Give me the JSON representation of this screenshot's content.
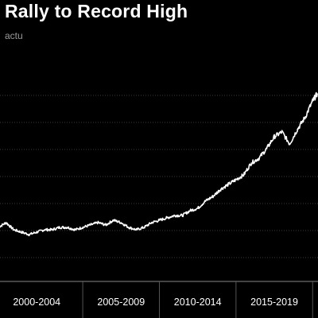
{
  "title": "Rally to Record High",
  "subtitle": "actu",
  "colors": {
    "background": "#000000",
    "line": "#ffffff",
    "grid": "#3a3a3a",
    "text": "#ffffff",
    "subtitle": "#9a9a9a"
  },
  "chart_data": {
    "type": "line",
    "title": "Rally to Record High",
    "xlabel": "",
    "ylabel": "",
    "x_tick_labels": [
      "2000-2004",
      "2005-2009",
      "2010-2014",
      "2015-2019"
    ],
    "grid": "horizontal",
    "legend": "none",
    "y_scale_units": "index (unlabeled)",
    "ylim": [
      0,
      100
    ],
    "series": [
      {
        "name": "",
        "x": [
          1999.5,
          2000.0,
          2000.5,
          2001.0,
          2001.5,
          2002.0,
          2002.5,
          2003.0,
          2003.5,
          2004.0,
          2004.5,
          2005.0,
          2005.5,
          2006.0,
          2006.5,
          2007.0,
          2007.5,
          2008.0,
          2008.5,
          2009.0,
          2009.5,
          2010.0,
          2010.5,
          2011.0,
          2011.5,
          2012.0,
          2012.5,
          2013.0,
          2013.5,
          2014.0,
          2014.5,
          2015.0,
          2015.5,
          2016.0,
          2016.5,
          2017.0,
          2017.5,
          2018.0,
          2018.5,
          2019.0,
          2019.5,
          2020.0,
          2020.3
        ],
        "values": [
          22,
          24,
          21,
          20,
          19,
          20,
          21,
          21,
          22,
          22,
          21,
          22,
          23,
          24,
          23,
          25,
          24,
          22,
          21,
          22,
          24,
          25,
          26,
          27,
          27,
          29,
          30,
          33,
          35,
          38,
          40,
          42,
          44,
          49,
          51,
          55,
          60,
          62,
          57,
          63,
          68,
          75,
          78
        ]
      }
    ]
  }
}
